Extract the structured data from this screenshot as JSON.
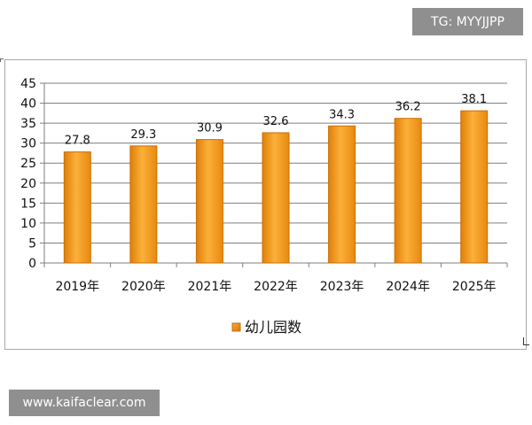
{
  "chart_data": {
    "type": "bar",
    "categories": [
      "2019年",
      "2020年",
      "2021年",
      "2022年",
      "2023年",
      "2024年",
      "2025年"
    ],
    "series": [
      {
        "name": "幼儿园数",
        "values": [
          27.8,
          29.3,
          30.9,
          32.6,
          34.3,
          36.2,
          38.1
        ]
      }
    ],
    "value_labels": [
      "27.8",
      "29.3",
      "30.9",
      "32.6",
      "34.3",
      "36.2",
      "38.1"
    ],
    "ylim": [
      0,
      45
    ],
    "yticks": [
      0,
      5,
      10,
      15,
      20,
      25,
      30,
      35,
      40,
      45
    ],
    "grid": true,
    "legend_position": "bottom",
    "bar_color": "#f39a1e",
    "bar_edge_color": "#c96f06"
  },
  "watermarks": {
    "top_right": "TG: MYYJJPP",
    "bottom_left": "www.kaifaclear.com"
  }
}
